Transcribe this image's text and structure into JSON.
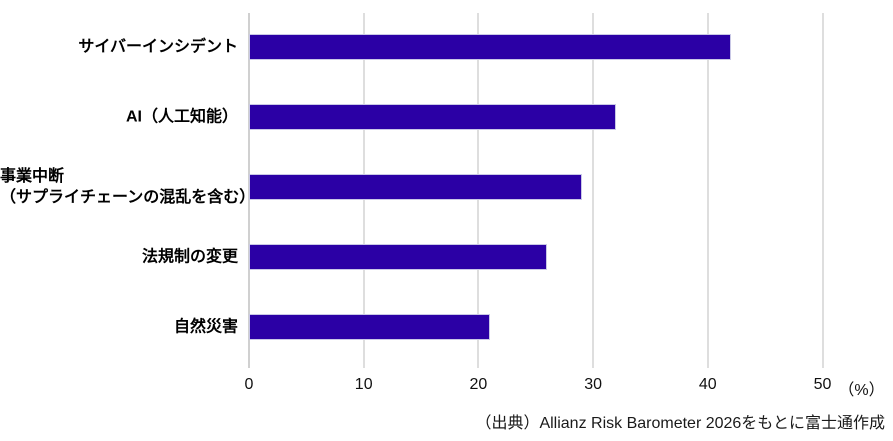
{
  "chart_data": {
    "type": "bar",
    "orientation": "horizontal",
    "title": "",
    "categories": [
      "サイバーインシデント",
      "AI（人工知能）",
      "事業中断\n（サプライチェーンの混乱を含む）",
      "法規制の変更",
      "自然災害"
    ],
    "values": [
      42,
      32,
      29,
      26,
      21
    ],
    "xlim": [
      0,
      50
    ],
    "x_ticks": [
      "0",
      "10",
      "20",
      "30",
      "40",
      "50"
    ],
    "x_tick_values": [
      0,
      10,
      20,
      30,
      40,
      50
    ],
    "x_unit_label": "（%）",
    "grid": true,
    "legend": false,
    "colors": {
      "bar_fill": "#2b00a5",
      "bar_border": "#c9c8e6",
      "gridline": "#dedede",
      "axis_line": "#d0d0d0",
      "label_text": "#000000"
    }
  },
  "footer": {
    "source_label": "（出典）Allianz Risk Barometer 2026をもとに富士通作成"
  }
}
